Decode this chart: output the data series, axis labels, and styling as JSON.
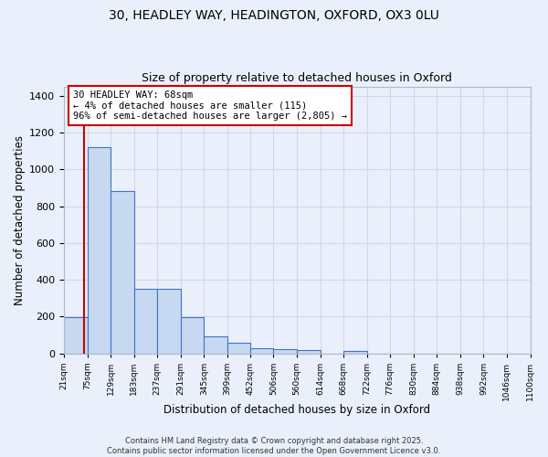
{
  "title_line1": "30, HEADLEY WAY, HEADINGTON, OXFORD, OX3 0LU",
  "title_line2": "Size of property relative to detached houses in Oxford",
  "xlabel": "Distribution of detached houses by size in Oxford",
  "ylabel": "Number of detached properties",
  "bar_edges": [
    21,
    75,
    129,
    183,
    237,
    291,
    345,
    399,
    452,
    506,
    560,
    614,
    668,
    722,
    776,
    830,
    884,
    938,
    992,
    1046,
    1100
  ],
  "bar_heights": [
    195,
    1120,
    880,
    350,
    350,
    195,
    95,
    57,
    27,
    22,
    17,
    0,
    12,
    0,
    0,
    0,
    0,
    0,
    0,
    0
  ],
  "bar_color": "#c6d9f1",
  "bar_edge_color": "#4472c4",
  "bar_edge_width": 0.8,
  "grid_color": "#d0d8e8",
  "background_color": "#eaf0fb",
  "vline_x": 68,
  "vline_color": "#cc0000",
  "annotation_text": "30 HEADLEY WAY: 68sqm\n← 4% of detached houses are smaller (115)\n96% of semi-detached houses are larger (2,805) →",
  "annotation_box_color": "white",
  "annotation_box_edge_color": "#cc0000",
  "ylim": [
    0,
    1450
  ],
  "yticks": [
    0,
    200,
    400,
    600,
    800,
    1000,
    1200,
    1400
  ],
  "footnote": "Contains HM Land Registry data © Crown copyright and database right 2025.\nContains public sector information licensed under the Open Government Licence v3.0.",
  "tick_labels": [
    "21sqm",
    "75sqm",
    "129sqm",
    "183sqm",
    "237sqm",
    "291sqm",
    "345sqm",
    "399sqm",
    "452sqm",
    "506sqm",
    "560sqm",
    "614sqm",
    "668sqm",
    "722sqm",
    "776sqm",
    "830sqm",
    "884sqm",
    "938sqm",
    "992sqm",
    "1046sqm",
    "1100sqm"
  ]
}
